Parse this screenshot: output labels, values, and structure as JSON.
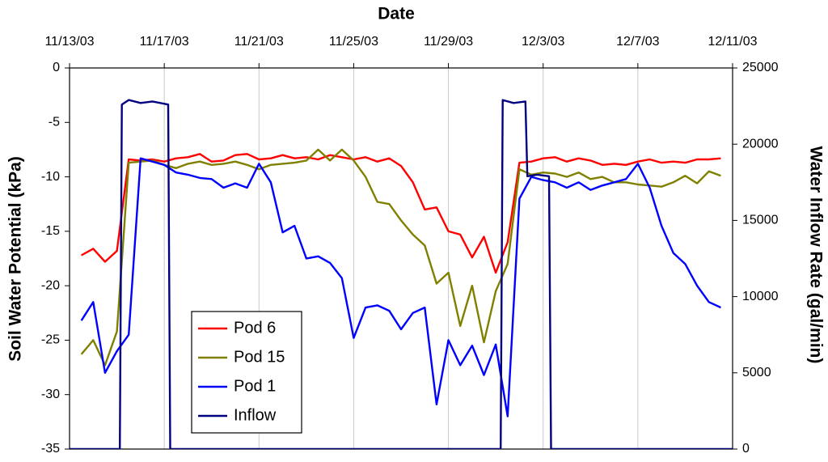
{
  "chart_data": {
    "type": "line",
    "title": "Date",
    "y_label": "Soil Water Potential (kPa)",
    "y2_label": "Water Inflow Rate (gal/min)",
    "xlim": [
      "2003-11-13",
      "2003-12-11"
    ],
    "xticks": [
      {
        "value": "2003-11-13",
        "label": "11/13/03"
      },
      {
        "value": "2003-11-17",
        "label": "11/17/03"
      },
      {
        "value": "2003-11-21",
        "label": "11/21/03"
      },
      {
        "value": "2003-11-25",
        "label": "11/25/03"
      },
      {
        "value": "2003-11-29",
        "label": "11/29/03"
      },
      {
        "value": "2003-12-03",
        "label": "12/3/03"
      },
      {
        "value": "2003-12-07",
        "label": "12/7/03"
      },
      {
        "value": "2003-12-11",
        "label": "12/11/03"
      }
    ],
    "ylim": [
      -35,
      0
    ],
    "yticks": [
      0,
      -5,
      -10,
      -15,
      -20,
      -25,
      -30,
      -35
    ],
    "y2lim": [
      0,
      25000
    ],
    "y2ticks": [
      25000,
      20000,
      15000,
      10000,
      5000,
      0
    ],
    "grid": true,
    "legend": "lower-left",
    "x": [
      "2003-11-13T12:00",
      "2003-11-14T00:00",
      "2003-11-14T12:00",
      "2003-11-15T00:00",
      "2003-11-15T12:00",
      "2003-11-16T00:00",
      "2003-11-16T12:00",
      "2003-11-17T00:00",
      "2003-11-17T12:00",
      "2003-11-18T00:00",
      "2003-11-18T12:00",
      "2003-11-19T00:00",
      "2003-11-19T12:00",
      "2003-11-20T00:00",
      "2003-11-20T12:00",
      "2003-11-21T00:00",
      "2003-11-21T12:00",
      "2003-11-22T00:00",
      "2003-11-22T12:00",
      "2003-11-23T00:00",
      "2003-11-23T12:00",
      "2003-11-24T00:00",
      "2003-11-24T12:00",
      "2003-11-25T00:00",
      "2003-11-25T12:00",
      "2003-11-26T00:00",
      "2003-11-26T12:00",
      "2003-11-27T00:00",
      "2003-11-27T12:00",
      "2003-11-28T00:00",
      "2003-11-28T12:00",
      "2003-11-29T00:00",
      "2003-11-29T12:00",
      "2003-11-30T00:00",
      "2003-11-30T12:00",
      "2003-12-01T00:00",
      "2003-12-01T12:00",
      "2003-12-02T00:00",
      "2003-12-02T12:00",
      "2003-12-03T00:00",
      "2003-12-03T12:00",
      "2003-12-04T00:00",
      "2003-12-04T12:00",
      "2003-12-05T00:00",
      "2003-12-05T12:00",
      "2003-12-06T00:00",
      "2003-12-06T12:00",
      "2003-12-07T00:00",
      "2003-12-07T12:00",
      "2003-12-08T00:00",
      "2003-12-08T12:00",
      "2003-12-09T00:00",
      "2003-12-09T12:00",
      "2003-12-10T00:00",
      "2003-12-10T12:00"
    ],
    "series": [
      {
        "name": "Pod 6",
        "color": "#ff0000",
        "values": [
          -17.2,
          -16.6,
          -17.8,
          -16.8,
          -8.4,
          -8.5,
          -8.4,
          -8.6,
          -8.3,
          -8.2,
          -7.9,
          -8.6,
          -8.5,
          -8.0,
          -7.9,
          -8.4,
          -8.3,
          -8.0,
          -8.3,
          -8.2,
          -8.4,
          -8.0,
          -8.2,
          -8.4,
          -8.2,
          -8.6,
          -8.3,
          -9.0,
          -10.5,
          -13.0,
          -12.8,
          -15.0,
          -15.3,
          -17.4,
          -15.5,
          -18.8,
          -16.0,
          -8.7,
          -8.6,
          -8.3,
          -8.2,
          -8.6,
          -8.3,
          -8.5,
          -8.9,
          -8.8,
          -8.9,
          -8.6,
          -8.4,
          -8.7,
          -8.6,
          -8.7,
          -8.4,
          -8.4,
          -8.3
        ]
      },
      {
        "name": "Pod 15",
        "color": "#808000",
        "values": [
          -26.3,
          -25.0,
          -27.3,
          -24.2,
          -8.7,
          -8.6,
          -8.5,
          -8.9,
          -9.2,
          -8.8,
          -8.6,
          -8.9,
          -8.8,
          -8.6,
          -8.9,
          -9.3,
          -8.9,
          -8.8,
          -8.7,
          -8.5,
          -7.5,
          -8.5,
          -7.5,
          -8.5,
          -10.0,
          -12.3,
          -12.5,
          -14.0,
          -15.3,
          -16.3,
          -19.8,
          -18.8,
          -23.7,
          -20.0,
          -25.2,
          -20.5,
          -18.0,
          -9.3,
          -9.8,
          -9.6,
          -9.7,
          -10.0,
          -9.6,
          -10.2,
          -10.0,
          -10.5,
          -10.5,
          -10.7,
          -10.8,
          -10.9,
          -10.5,
          -9.9,
          -10.6,
          -9.5,
          -9.9
        ]
      },
      {
        "name": "Pod 1",
        "color": "#0000ff",
        "values": [
          -23.2,
          -21.5,
          -28.0,
          -26.0,
          -24.5,
          -8.3,
          -8.6,
          -8.9,
          -9.6,
          -9.8,
          -10.1,
          -10.2,
          -11.0,
          -10.6,
          -11.0,
          -8.8,
          -10.5,
          -15.1,
          -14.5,
          -17.5,
          -17.3,
          -17.9,
          -19.3,
          -24.8,
          -22.0,
          -21.8,
          -22.3,
          -24.0,
          -22.5,
          -22.0,
          -30.9,
          -25.0,
          -27.3,
          -25.5,
          -28.2,
          -25.4,
          -32.0,
          -12.0,
          -10.0,
          -10.3,
          -10.5,
          -11.0,
          -10.5,
          -11.2,
          -10.8,
          -10.5,
          -10.2,
          -8.8,
          -11.0,
          -14.5,
          -17.0,
          -18.0,
          -20.0,
          -21.5,
          -22.0
        ]
      },
      {
        "name": "Inflow",
        "color": "#000080",
        "axis": "y2",
        "x": [
          "2003-11-13T00:00",
          "2003-11-15T03:00",
          "2003-11-15T05:00",
          "2003-11-15T12:00",
          "2003-11-16T00:00",
          "2003-11-16T12:00",
          "2003-11-17T04:00",
          "2003-11-17T06:00",
          "2003-12-01T05:00",
          "2003-12-01T07:00",
          "2003-12-01T18:00",
          "2003-12-02T06:00",
          "2003-12-02T08:00",
          "2003-12-02T18:00",
          "2003-12-03T06:00",
          "2003-12-03T08:00",
          "2003-12-11T00:00"
        ],
        "values": [
          0,
          0,
          22600,
          22900,
          22700,
          22800,
          22600,
          0,
          0,
          22900,
          22700,
          22800,
          17900,
          18000,
          17900,
          0,
          0
        ]
      }
    ]
  }
}
